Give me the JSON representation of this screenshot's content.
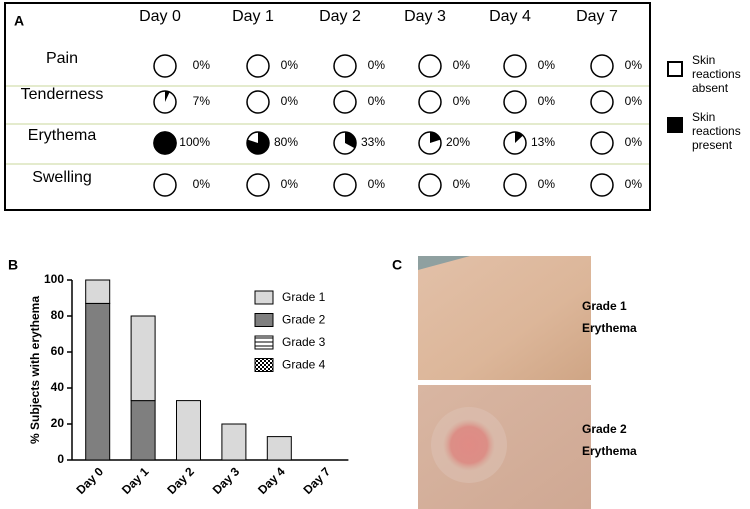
{
  "panels": {
    "a": "A",
    "b": "B",
    "c": "C"
  },
  "chart_data": [
    {
      "type": "pie-grid",
      "columns": [
        "Day 0",
        "Day 1",
        "Day 2",
        "Day 3",
        "Day 4",
        "Day 7"
      ],
      "series": [
        {
          "name": "Pain",
          "color": "#000000",
          "values": [
            0,
            0,
            0,
            0,
            0,
            0
          ],
          "value_labels": [
            "0%",
            "0%",
            "0%",
            "0%",
            "0%",
            "0%"
          ]
        },
        {
          "name": "Tenderness",
          "color": "#000000",
          "values": [
            7,
            0,
            0,
            0,
            0,
            0
          ],
          "value_labels": [
            "7%",
            "0%",
            "0%",
            "0%",
            "0%",
            "0%"
          ]
        },
        {
          "name": "Erythema",
          "color": "#000000",
          "values": [
            100,
            80,
            33,
            20,
            13,
            0
          ],
          "value_labels": [
            "100%",
            "80%",
            "33%",
            "20%",
            "13%",
            "0%"
          ]
        },
        {
          "name": "Swelling",
          "color": "#000000",
          "values": [
            0,
            0,
            0,
            0,
            0,
            0
          ],
          "value_labels": [
            "0%",
            "0%",
            "0%",
            "0%",
            "0%",
            "0%"
          ]
        }
      ],
      "legend": [
        {
          "name": "Skin reactions absent",
          "color": "#ffffff"
        },
        {
          "name": "Skin reactions present",
          "color": "#000000"
        }
      ]
    },
    {
      "type": "bar",
      "stacked": true,
      "categories": [
        "Day 0",
        "Day 1",
        "Day 2",
        "Day 3",
        "Day 4",
        "Day 7"
      ],
      "series": [
        {
          "name": "Grade 1",
          "color": "#d9d9d9",
          "values": [
            13,
            47,
            33,
            20,
            13,
            0
          ]
        },
        {
          "name": "Grade 2",
          "color": "#7f7f7f",
          "values": [
            87,
            33,
            0,
            0,
            0,
            0
          ]
        },
        {
          "name": "Grade 3",
          "color": "#ffffff",
          "pattern": "horizontal-lines",
          "values": [
            0,
            0,
            0,
            0,
            0,
            0
          ]
        },
        {
          "name": "Grade 4",
          "color": "#ffffff",
          "pattern": "checker",
          "values": [
            0,
            0,
            0,
            0,
            0,
            0
          ]
        }
      ],
      "ylabel": "% Subjects with erythema",
      "ylim": [
        0,
        100
      ],
      "yticks": [
        0,
        20,
        40,
        60,
        80,
        100
      ],
      "legend_position": "upper right"
    }
  ],
  "photos": [
    {
      "caption": [
        "Grade 1",
        "Erythema"
      ]
    },
    {
      "caption": [
        "Grade 2",
        "Erythema"
      ]
    }
  ]
}
